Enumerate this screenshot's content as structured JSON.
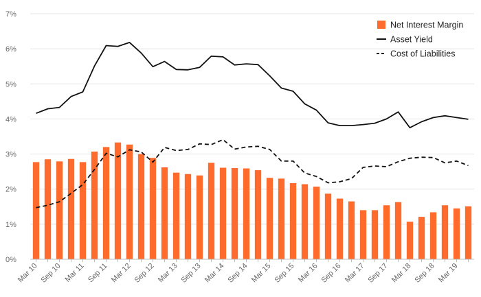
{
  "chart_data": {
    "type": "bar",
    "title": "",
    "xlabel": "",
    "ylabel": "",
    "ylim": [
      0,
      7
    ],
    "y_ticks": [
      "0%",
      "1%",
      "2%",
      "3%",
      "4%",
      "5%",
      "6%",
      "7%"
    ],
    "grid": "horizontal",
    "legend_position": "top-right",
    "x_tick_labels": [
      "Mar 10",
      "Sep 10",
      "Mar 11",
      "Sep 11",
      "Mar 12",
      "Sep 12",
      "Mar 13",
      "Sep 13",
      "Mar 14",
      "Sep 14",
      "Mar 15",
      "Sep 15",
      "Mar 16",
      "Sep 16",
      "Mar 17",
      "Sep 17",
      "Mar 18",
      "Sep 18",
      "Mar 19"
    ],
    "x_ticks_every": 2,
    "colors": {
      "bar": "#FF6B2C",
      "line": "#111111",
      "grid": "#E4E4E4",
      "axis": "#BBBBBB",
      "tick_text": "#666666"
    },
    "series": [
      {
        "name": "Net Interest Margin",
        "kind": "bar",
        "values": [
          2.77,
          2.85,
          2.79,
          2.86,
          2.77,
          3.07,
          3.2,
          3.33,
          3.27,
          3.0,
          2.89,
          2.62,
          2.47,
          2.43,
          2.39,
          2.75,
          2.61,
          2.6,
          2.59,
          2.54,
          2.32,
          2.3,
          2.17,
          2.14,
          2.07,
          1.87,
          1.73,
          1.65,
          1.4,
          1.4,
          1.54,
          1.63,
          1.07,
          1.21,
          1.34,
          1.54,
          1.45,
          1.51
        ]
      },
      {
        "name": "Asset Yield",
        "kind": "line",
        "dash": "solid",
        "values": [
          4.16,
          4.29,
          4.33,
          4.64,
          4.77,
          5.51,
          6.09,
          6.07,
          6.18,
          5.88,
          5.49,
          5.64,
          5.41,
          5.4,
          5.47,
          5.79,
          5.77,
          5.54,
          5.57,
          5.55,
          5.23,
          4.88,
          4.79,
          4.43,
          4.25,
          3.89,
          3.81,
          3.81,
          3.84,
          3.88,
          4.0,
          4.2,
          3.75,
          3.92,
          4.04,
          4.09,
          4.04,
          3.99
        ]
      },
      {
        "name": "Cost of Liabilities",
        "kind": "line",
        "dash": "dashed",
        "values": [
          1.47,
          1.54,
          1.64,
          1.88,
          2.13,
          2.56,
          3.02,
          2.92,
          3.12,
          3.06,
          2.77,
          3.19,
          3.1,
          3.13,
          3.29,
          3.27,
          3.41,
          3.14,
          3.2,
          3.22,
          3.13,
          2.8,
          2.8,
          2.46,
          2.36,
          2.18,
          2.21,
          2.3,
          2.62,
          2.66,
          2.64,
          2.78,
          2.88,
          2.91,
          2.9,
          2.75,
          2.8,
          2.67
        ]
      }
    ]
  }
}
